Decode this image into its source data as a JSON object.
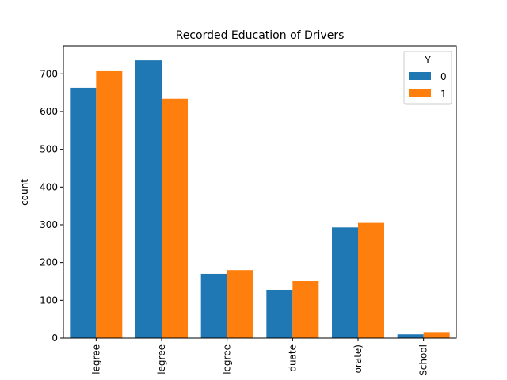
{
  "chart_data": {
    "type": "bar",
    "title": "Recorded Education of Drivers",
    "xlabel": "",
    "ylabel": "count",
    "categories": [
      "legree",
      "legree",
      "legree",
      "duate",
      "orate)",
      "School"
    ],
    "series": [
      {
        "name": "0",
        "color": "#1f77b4",
        "values": [
          663,
          736,
          170,
          128,
          293,
          10
        ]
      },
      {
        "name": "1",
        "color": "#ff7f0e",
        "values": [
          707,
          634,
          180,
          151,
          305,
          16
        ]
      }
    ],
    "ylim": [
      0,
      774
    ],
    "yticks": [
      0,
      100,
      200,
      300,
      400,
      500,
      600,
      700
    ],
    "legend": {
      "title": "Y",
      "placement": "top-right"
    },
    "grid": false
  }
}
